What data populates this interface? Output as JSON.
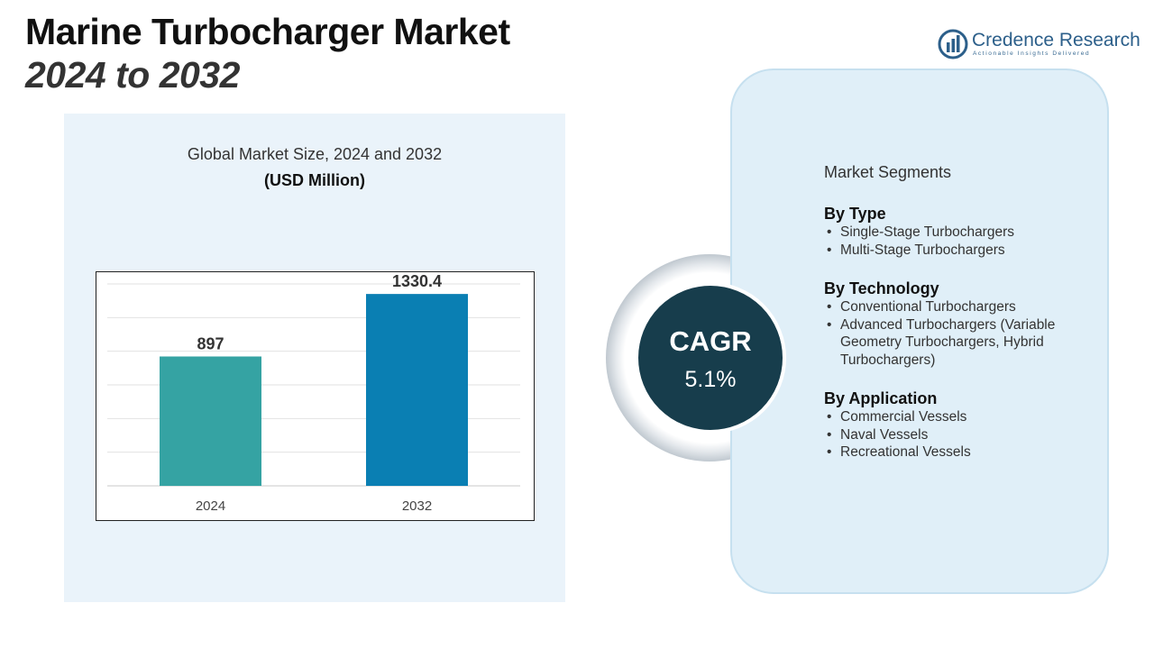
{
  "title": {
    "main": "Marine Turbocharger Market",
    "sub": "2024 to 2032"
  },
  "logo": {
    "name": "Credence Research",
    "tagline": "Actionable Insights Delivered",
    "icon": "bar-chart-logo-icon",
    "color": "#2c5f8a"
  },
  "chart_data": {
    "type": "bar",
    "title": "Global Market Size, 2024 and 2032",
    "subtitle": "(USD Million)",
    "categories": [
      "2024",
      "2032"
    ],
    "values": [
      897,
      1330.4
    ],
    "value_labels": [
      "897",
      "1330.4"
    ],
    "colors": [
      "#35a3a3",
      "#0a7fb3"
    ],
    "ylim": [
      0,
      1400
    ],
    "grid": true,
    "legend": "none"
  },
  "cagr": {
    "label": "CAGR",
    "value": "5.1%"
  },
  "segments": {
    "title": "Market Segments",
    "groups": [
      {
        "heading": "By Type",
        "items": [
          "Single-Stage Turbochargers",
          "Multi-Stage Turbochargers"
        ]
      },
      {
        "heading": "By Technology",
        "items": [
          "Conventional Turbochargers",
          "Advanced Turbochargers (Variable Geometry Turbochargers, Hybrid Turbochargers)"
        ]
      },
      {
        "heading": "By Application",
        "items": [
          "Commercial Vessels",
          "Naval Vessels",
          "Recreational Vessels"
        ]
      }
    ]
  }
}
